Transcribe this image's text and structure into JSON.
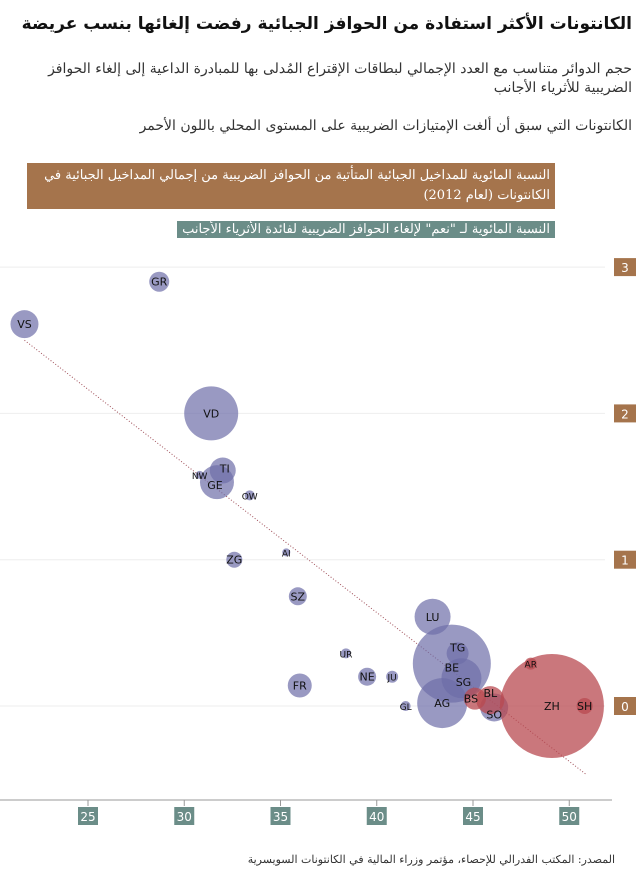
{
  "title": "الكانتونات الأكثر استفادة من الحوافز الجبائية رفضت إلغائها بنسب عريضة",
  "subtitle": "حجم الدوائر متناسب مع العدد الإجمالي لبطاقات الإقتراع المُدلى بها للمبادرة الداعية إلى إلغاء الحوافز الضريبية للأثرياء الأجانب",
  "note": "الكانتونات التي سبق أن ألغت الإمتيازات الضريبية على المستوى المحلي باللون الأحمر",
  "source": "المصدر: المكتب الفدرالي للإحصاء، مؤتمر وزراء المالية في الكانتونات السويسرية",
  "chart_data": {
    "type": "scatter",
    "ylabel": "النسبة المائوية للمداخيل الجبائية المتأتية من الحوافز الضريبية من إجمالي المداخيل الجبائية في الكانتونات (لعام 2012)",
    "xlabel": "النسبة المائوية لـ \"نعم\" لإلغاء الحوافز الضريبية لفائدة الأثرياء الأجانب",
    "xlim": [
      20.5,
      53
    ],
    "ylim": [
      -0.65,
      3.25
    ],
    "xticks": [
      "25",
      "30",
      "35",
      "40",
      "45",
      "50"
    ],
    "yticks": [
      "0",
      "1",
      "2",
      "3"
    ],
    "grid": true,
    "trendline": {
      "style": "dotted",
      "from": [
        21.7,
        2.5
      ],
      "to": [
        50.9,
        -0.47
      ]
    },
    "colors": {
      "abolished": "#b84a50",
      "other": "#6e6ea8",
      "ytick_bg": "#a5744c",
      "xtick_bg": "#6b8d88"
    },
    "points": [
      {
        "label": "GR",
        "x": 28.7,
        "y": 2.9,
        "size": 100,
        "abolished": false
      },
      {
        "label": "VS",
        "x": 21.7,
        "y": 2.61,
        "size": 196,
        "abolished": false
      },
      {
        "label": "VD",
        "x": 31.4,
        "y": 2.0,
        "size": 729,
        "abolished": false
      },
      {
        "label": "GE",
        "x": 31.7,
        "y": 1.53,
        "size": 289,
        "abolished": false
      },
      {
        "label": "TI",
        "x": 32.0,
        "y": 1.61,
        "size": 169,
        "abolished": false
      },
      {
        "label": "NW",
        "x": 30.8,
        "y": 1.58,
        "size": 16,
        "abolished": false
      },
      {
        "label": "OW",
        "x": 33.4,
        "y": 1.44,
        "size": 25,
        "abolished": false
      },
      {
        "label": "ZG",
        "x": 32.6,
        "y": 1.0,
        "size": 64,
        "abolished": false
      },
      {
        "label": "AI",
        "x": 35.3,
        "y": 1.05,
        "size": 16,
        "abolished": false
      },
      {
        "label": "SZ",
        "x": 35.9,
        "y": 0.75,
        "size": 81,
        "abolished": false
      },
      {
        "label": "FR",
        "x": 36.0,
        "y": 0.14,
        "size": 144,
        "abolished": false
      },
      {
        "label": "UR",
        "x": 38.4,
        "y": 0.36,
        "size": 25,
        "abolished": false
      },
      {
        "label": "NE",
        "x": 39.5,
        "y": 0.2,
        "size": 81,
        "abolished": false
      },
      {
        "label": "JU",
        "x": 40.8,
        "y": 0.2,
        "size": 36,
        "abolished": false
      },
      {
        "label": "GL",
        "x": 41.5,
        "y": 0.0,
        "size": 25,
        "abolished": false
      },
      {
        "label": "LU",
        "x": 42.9,
        "y": 0.61,
        "size": 324,
        "abolished": false
      },
      {
        "label": "BE",
        "x": 43.9,
        "y": 0.29,
        "size": 1521,
        "abolished": false
      },
      {
        "label": "AG",
        "x": 43.4,
        "y": 0.02,
        "size": 625,
        "abolished": false
      },
      {
        "label": "SG",
        "x": 44.4,
        "y": 0.19,
        "size": 400,
        "abolished": false
      },
      {
        "label": "TG",
        "x": 44.2,
        "y": 0.36,
        "size": 121,
        "abolished": false
      },
      {
        "label": "SO",
        "x": 46.1,
        "y": -0.01,
        "size": 196,
        "abolished": false
      },
      {
        "label": "ZH",
        "x": 49.1,
        "y": 0.0,
        "size": 2704,
        "abolished": true
      },
      {
        "label": "BS",
        "x": 45.1,
        "y": 0.05,
        "size": 121,
        "abolished": true
      },
      {
        "label": "BL",
        "x": 45.9,
        "y": 0.04,
        "size": 196,
        "abolished": true
      },
      {
        "label": "AR",
        "x": 48.0,
        "y": 0.29,
        "size": 36,
        "abolished": true
      },
      {
        "label": "SH",
        "x": 50.8,
        "y": 0.0,
        "size": 64,
        "abolished": true
      }
    ]
  }
}
